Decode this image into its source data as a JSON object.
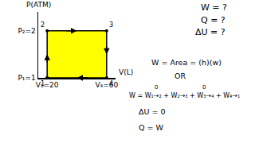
{
  "chart_data": {
    "type": "line",
    "x_label": "V(L)",
    "y_label": "P(ATM)",
    "x": [
      20,
      20,
      60,
      60
    ],
    "values": [
      1,
      2,
      2,
      1
    ],
    "point_labels": [
      "1",
      "2",
      "3",
      "4"
    ],
    "color": "#ffff00",
    "xlim": [
      14,
      66
    ],
    "xticks": [
      {
        "value": 20,
        "label": "V₁=20"
      },
      {
        "value": 60,
        "label": "V₄=60"
      }
    ],
    "ylim": [
      1,
      2.4
    ],
    "yticks": [
      {
        "value": 1,
        "label": "P₁=1"
      },
      {
        "value": 2,
        "label": "P₂=2"
      }
    ],
    "grid": false,
    "annotations": [
      "W = ?",
      "Q = ?",
      "ΔU = ?",
      "W = Area = (h)(w)",
      "OR",
      "W = W₁→₂ + W₂→₃ + W₃→₄ + W₄→₁",
      "0",
      "0",
      "ΔU = 0",
      "Q = W"
    ]
  }
}
